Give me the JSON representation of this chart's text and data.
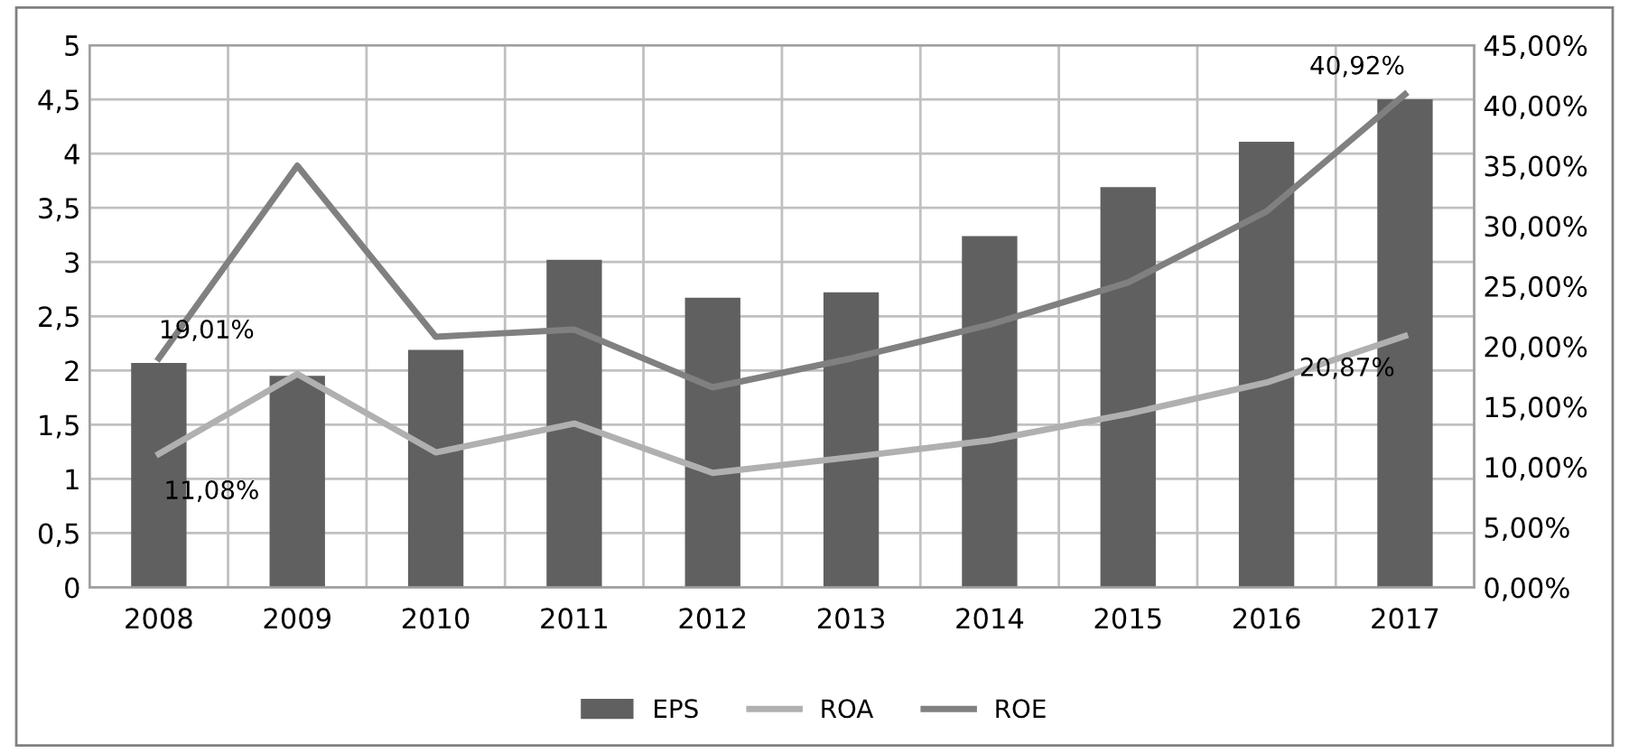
{
  "chart_data": {
    "type": "bar",
    "categories": [
      "2008",
      "2009",
      "2010",
      "2011",
      "2012",
      "2013",
      "2014",
      "2015",
      "2016",
      "2017"
    ],
    "series": [
      {
        "name": "EPS",
        "color": "#606060",
        "values": [
          2.07,
          1.95,
          2.19,
          3.02,
          2.67,
          2.72,
          3.24,
          3.69,
          4.11,
          4.5
        ]
      },
      {
        "name": "ROA",
        "type": "line",
        "axis": "y2",
        "color": "#b0b0b0",
        "values": [
          11.08,
          17.7,
          11.2,
          13.6,
          9.5,
          10.8,
          12.2,
          14.4,
          17.0,
          20.87
        ],
        "value_labels": [
          "11,08%",
          null,
          null,
          null,
          null,
          null,
          null,
          null,
          null,
          "20,87%"
        ]
      },
      {
        "name": "ROE",
        "type": "line",
        "axis": "y2",
        "color": "#808080",
        "values": [
          19.01,
          35.0,
          20.8,
          21.4,
          16.6,
          19.0,
          21.8,
          25.3,
          31.2,
          40.92
        ],
        "value_labels": [
          "19,01%",
          null,
          null,
          null,
          null,
          null,
          null,
          null,
          null,
          "40,92%"
        ]
      }
    ],
    "ylim": [
      0,
      5
    ],
    "yticks": [
      0,
      {
        "value": 0.5,
        "label": "0,5"
      },
      1,
      {
        "value": 1.5,
        "label": "1,5"
      },
      2,
      {
        "value": 2.5,
        "label": "2,5"
      },
      3,
      {
        "value": 3.5,
        "label": "3,5"
      },
      4,
      {
        "value": 4.5,
        "label": "4,5"
      },
      5
    ],
    "y2lim": [
      0,
      45
    ],
    "y2ticks": [
      {
        "value": 0,
        "label": "0,00%"
      },
      {
        "value": 5,
        "label": "5,00%"
      },
      {
        "value": 10,
        "label": "10,00%"
      },
      {
        "value": 15,
        "label": "15,00%"
      },
      {
        "value": 20,
        "label": "20,00%"
      },
      {
        "value": 25,
        "label": "25,00%"
      },
      {
        "value": 30,
        "label": "30,00%"
      },
      {
        "value": 35,
        "label": "35,00%"
      },
      {
        "value": 40,
        "label": "40,00%"
      },
      {
        "value": 45,
        "label": "45,00%"
      }
    ],
    "grid": true,
    "legend": "bottom",
    "marker": "none",
    "line_style": "solid"
  }
}
